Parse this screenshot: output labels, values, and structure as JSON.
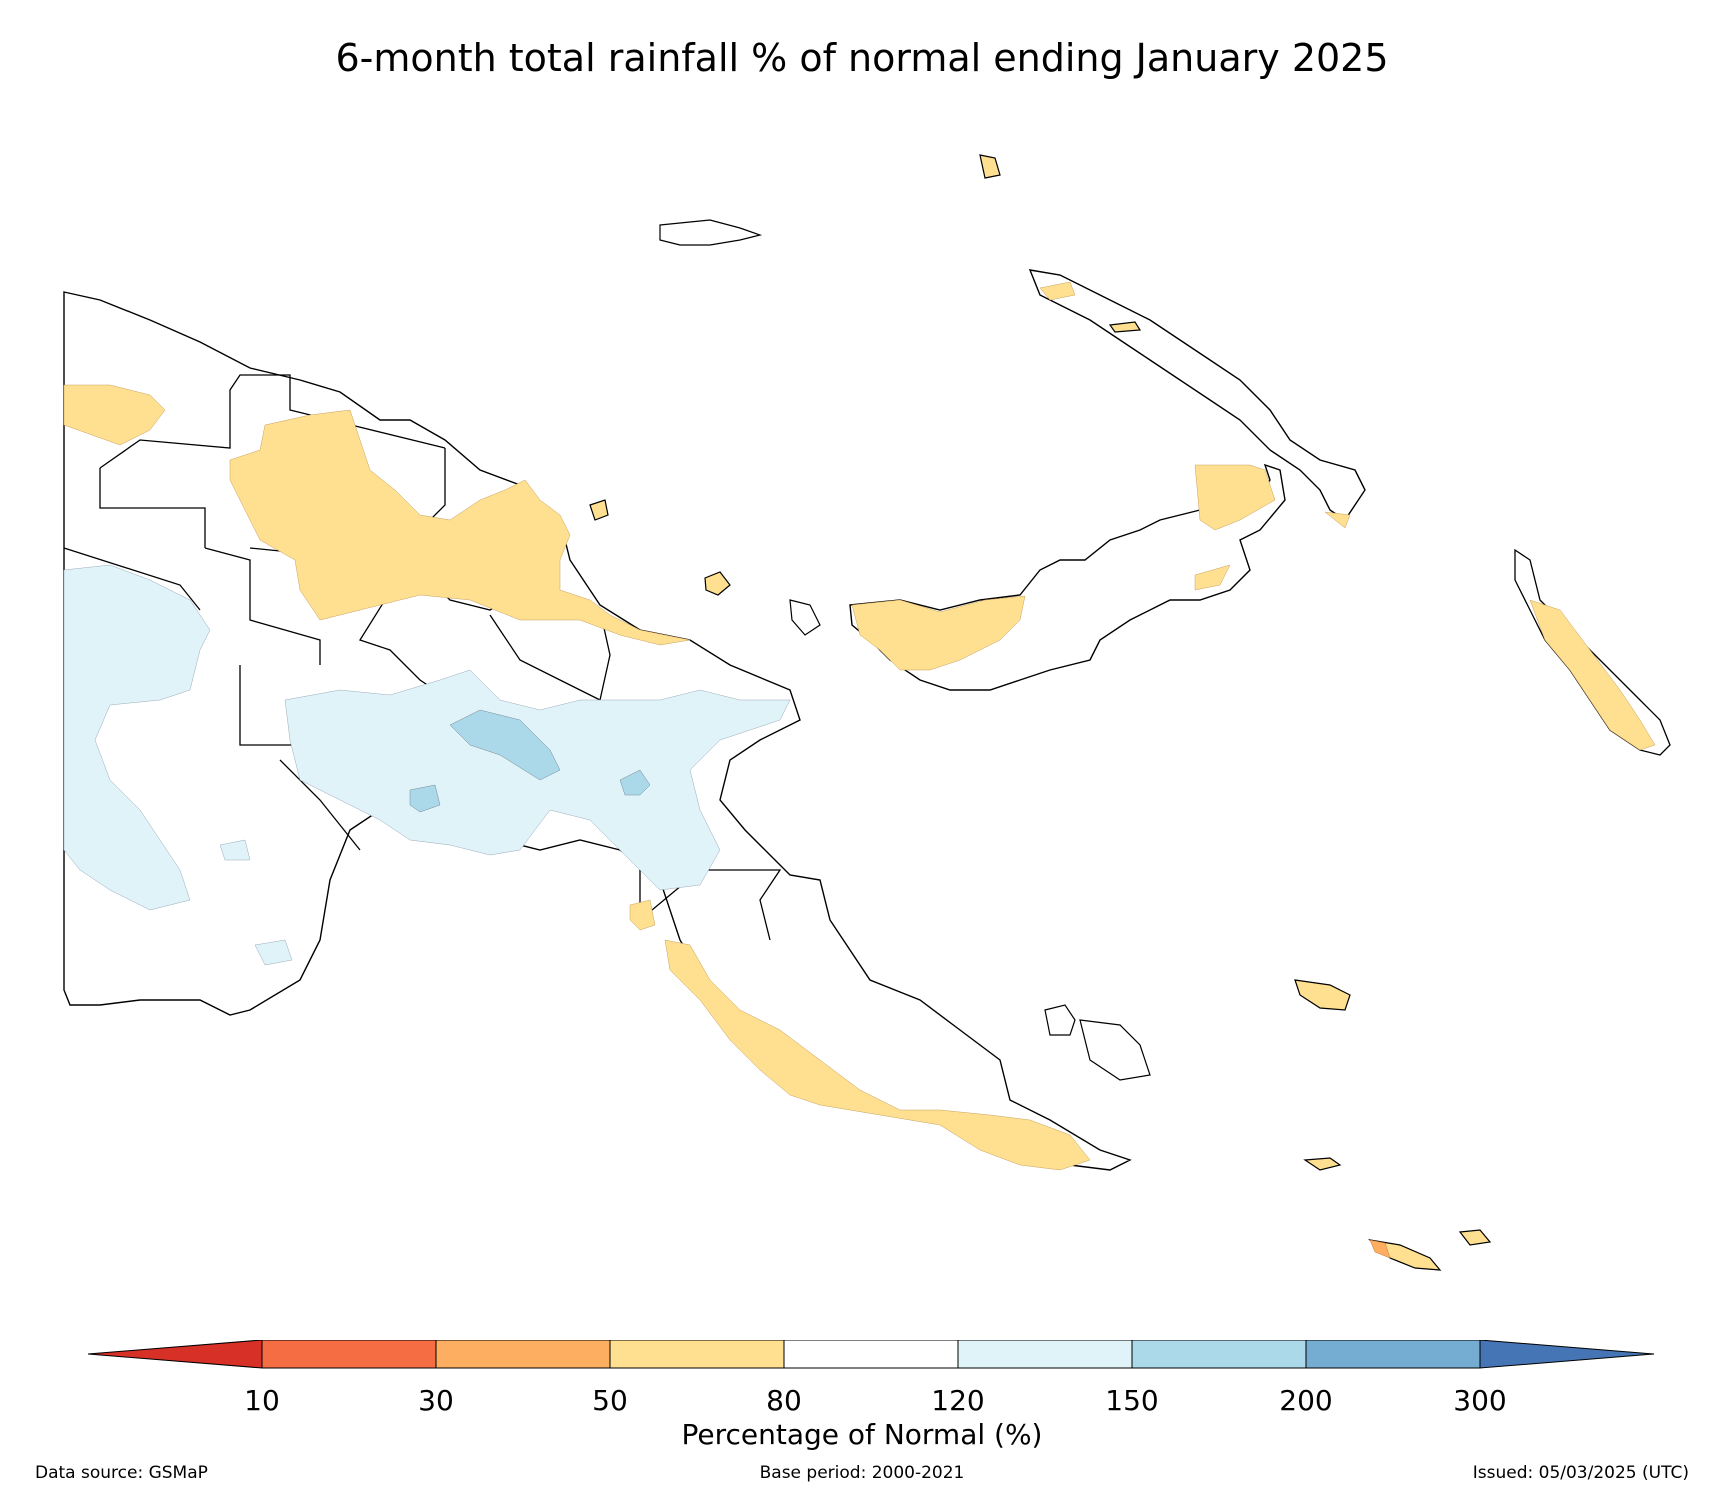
{
  "title": "6-month total rainfall % of normal ending January 2025",
  "colorbar": {
    "label": "Percentage of Normal (%)",
    "ticks": [
      "10",
      "30",
      "50",
      "80",
      "120",
      "150",
      "200",
      "300"
    ],
    "colors": {
      "below_10": "#d73027",
      "10_30": "#f46d43",
      "30_50": "#fdae61",
      "50_80": "#fee090",
      "80_120": "#ffffff",
      "120_150": "#e0f3f8",
      "150_200": "#abd9e9",
      "200_300": "#74add1",
      "above_300": "#4575b4"
    }
  },
  "footer": {
    "source": "Data source: GSMaP",
    "base_period": "Base period: 2000-2021",
    "issued": "Issued: 05/03/2025 (UTC)"
  }
}
